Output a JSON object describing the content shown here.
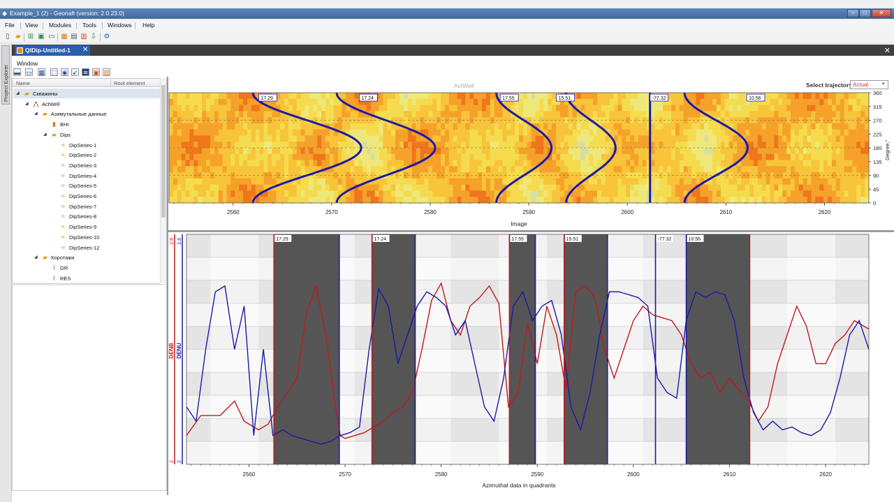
{
  "window": {
    "title": "Example_1 (2) - Geonaft (version: 2.0.23.0)",
    "minimize": "–",
    "maximize": "□",
    "close": "✕"
  },
  "menu": {
    "items": [
      "File",
      "View",
      "Modules",
      "Tools",
      "Windows",
      "Help"
    ]
  },
  "toolbar_icons": [
    "new-file-icon",
    "open-folder-icon",
    "add-well-icon",
    "add-data-icon",
    "table-icon",
    "chart-icon",
    "log-icon",
    "report-icon",
    "export-icon",
    "settings-icon"
  ],
  "side_panel": {
    "label": "Project Explorer"
  },
  "tab": {
    "label": "QIDip-Untitled-1",
    "close": "✕"
  },
  "doc_close": "✕",
  "doc_window_label": "Window",
  "tree": {
    "header_name": "Name",
    "header_root": "Root element",
    "rows": [
      {
        "label": "Скважины",
        "indent": 0,
        "icon": "folder-icon"
      },
      {
        "label": "ActWell",
        "indent": 1,
        "icon": "well-icon"
      },
      {
        "label": "Азимутальные данные",
        "indent": 2,
        "icon": "folder-icon"
      },
      {
        "label": "BHI",
        "indent": 3,
        "icon": "image-icon"
      },
      {
        "label": "Dips",
        "indent": 3,
        "icon": "folder-open-icon"
      },
      {
        "label": "DipSeries-1",
        "indent": 4,
        "icon": "dip-icon"
      },
      {
        "label": "DipSeries-2",
        "indent": 4,
        "icon": "dip-icon"
      },
      {
        "label": "DipSeries-3",
        "indent": 4,
        "icon": "dip-icon"
      },
      {
        "label": "DipSeries-4",
        "indent": 4,
        "icon": "dip-icon"
      },
      {
        "label": "DipSeries-5",
        "indent": 4,
        "icon": "dip-icon"
      },
      {
        "label": "DipSeries-6",
        "indent": 4,
        "icon": "dip-icon"
      },
      {
        "label": "DipSeries-7",
        "indent": 4,
        "icon": "dip-icon"
      },
      {
        "label": "DipSeries-8",
        "indent": 4,
        "icon": "dip-icon"
      },
      {
        "label": "DipSeries-9",
        "indent": 4,
        "icon": "dip-icon"
      },
      {
        "label": "DipSeries-10",
        "indent": 4,
        "icon": "dip-icon"
      },
      {
        "label": "DipSeries-12",
        "indent": 4,
        "icon": "dip-icon"
      },
      {
        "label": "Коротажи",
        "indent": 2,
        "icon": "folder-icon"
      },
      {
        "label": "GR",
        "indent": 3,
        "icon": "curve-icon"
      },
      {
        "label": "RES",
        "indent": 3,
        "icon": "curve-icon"
      }
    ]
  },
  "plot_title": "ActWell",
  "trajectory": {
    "label": "Select trajectory",
    "value": "Actual"
  },
  "chart_data": [
    {
      "type": "heatmap",
      "title": "ActWell",
      "xlabel": "Image",
      "ylabel": "Degree,°",
      "xlim": [
        2553.5,
        2624.5
      ],
      "ylim": [
        0,
        360
      ],
      "xticks": [
        2560,
        2570,
        2580,
        2590,
        2600,
        2610,
        2620
      ],
      "yticks": [
        0,
        45,
        90,
        135,
        180,
        225,
        270,
        315,
        360
      ],
      "sinusoids": [
        {
          "center": 2567.5,
          "amp": 5.5,
          "label": "17.29",
          "line_x": 2562.6
        },
        {
          "center": 2575.5,
          "amp": 5.0,
          "label": "17.24",
          "line_x": 2572.8
        },
        {
          "center": 2589.5,
          "amp": 2.8,
          "label": "17.55",
          "line_x": 2587.1
        },
        {
          "center": 2596.3,
          "amp": 2.5,
          "label": "15.51",
          "line_x": 2592.8
        },
        {
          "center": 2602.3,
          "amp": 0.0,
          "label": "-77.32",
          "line_x": 2602.3
        },
        {
          "center": 2609.0,
          "amp": 3.2,
          "label": "10.56",
          "line_x": 2612.1
        }
      ]
    },
    {
      "type": "line",
      "xlabel": "Azimuthal data in quadrants",
      "xlim": [
        2553.5,
        2624.5
      ],
      "xticks": [
        2560,
        2570,
        2580,
        2590,
        2600,
        2610,
        2620
      ],
      "left_axes": [
        {
          "name": "DENB",
          "min": "2",
          "max": "2.8",
          "color": "#c0181c"
        },
        {
          "name": "DENU",
          "min": "2",
          "max": "2.8",
          "color": "#1a1aa8"
        }
      ],
      "bands": [
        {
          "x0": 2562.6,
          "x1": 2569.4,
          "label": "17.29"
        },
        {
          "x0": 2572.8,
          "x1": 2577.3,
          "label": "17.24"
        },
        {
          "x0": 2587.1,
          "x1": 2589.8,
          "label": "17.55"
        },
        {
          "x0": 2592.8,
          "x1": 2597.3,
          "label": "15.51"
        },
        {
          "x0": 2605.5,
          "x1": 2612.1,
          "label": "10.56"
        }
      ],
      "markers": [
        {
          "x": 2562.6,
          "color": "#c0181c"
        },
        {
          "x": 2569.4,
          "color": "#1a1aa8"
        },
        {
          "x": 2572.8,
          "color": "#c0181c"
        },
        {
          "x": 2577.3,
          "color": "#1a1aa8"
        },
        {
          "x": 2587.1,
          "color": "#c0181c"
        },
        {
          "x": 2589.8,
          "color": "#1a1aa8"
        },
        {
          "x": 2592.8,
          "color": "#c0181c"
        },
        {
          "x": 2597.3,
          "color": "#1a1aa8"
        },
        {
          "x": 2602.3,
          "color": "#1a1aa8",
          "label": "-77.32"
        },
        {
          "x": 2605.5,
          "color": "#1a1aa8"
        },
        {
          "x": 2612.1,
          "color": "#c0181c"
        }
      ],
      "series": [
        {
          "name": "DENB",
          "color": "#c0181c",
          "x": [
            2553.5,
            2555,
            2557,
            2558.5,
            2559.5,
            2561,
            2562,
            2563,
            2564,
            2565,
            2566,
            2567,
            2568,
            2569,
            2569.5,
            2570,
            2571,
            2572,
            2573,
            2574,
            2575,
            2576,
            2577,
            2578,
            2579,
            2580,
            2581,
            2582,
            2583,
            2584,
            2585,
            2586,
            2587,
            2588,
            2589,
            2590,
            2591,
            2592,
            2593,
            2594,
            2595,
            2596,
            2597,
            2598,
            2599,
            2600,
            2601,
            2602,
            2603,
            2604,
            2605,
            2606,
            2607,
            2608,
            2609,
            2610,
            2611,
            2612,
            2613,
            2614,
            2615,
            2616,
            2617,
            2618,
            2619,
            2620,
            2621,
            2622,
            2623,
            2624.5
          ],
          "y": [
            2.1,
            2.17,
            2.17,
            2.22,
            2.15,
            2.12,
            2.14,
            2.2,
            2.25,
            2.3,
            2.53,
            2.62,
            2.45,
            2.2,
            2.1,
            2.09,
            2.1,
            2.11,
            2.13,
            2.15,
            2.18,
            2.2,
            2.25,
            2.4,
            2.57,
            2.63,
            2.5,
            2.45,
            2.55,
            2.58,
            2.62,
            2.56,
            2.2,
            2.25,
            2.49,
            2.35,
            2.55,
            2.45,
            2.26,
            2.6,
            2.62,
            2.58,
            2.4,
            2.3,
            2.4,
            2.5,
            2.55,
            2.52,
            2.51,
            2.5,
            2.45,
            2.35,
            2.3,
            2.32,
            2.25,
            2.3,
            2.26,
            2.22,
            2.15,
            2.2,
            2.35,
            2.45,
            2.55,
            2.48,
            2.35,
            2.35,
            2.42,
            2.45,
            2.5,
            2.47
          ]
        },
        {
          "name": "DENU",
          "color": "#1a1aa8",
          "x": [
            2553.5,
            2554.5,
            2555.5,
            2556.5,
            2557.5,
            2558.5,
            2559.5,
            2560.5,
            2561.5,
            2562.5,
            2563.5,
            2564.5,
            2565.5,
            2566.5,
            2567.5,
            2568.5,
            2569.5,
            2570.5,
            2571.5,
            2572.5,
            2573.5,
            2574.5,
            2575.5,
            2576.5,
            2577.5,
            2578.5,
            2579.5,
            2580.5,
            2581.5,
            2582.5,
            2583.5,
            2584.5,
            2585.5,
            2586.5,
            2587.5,
            2588.5,
            2589.5,
            2590.5,
            2591.5,
            2592.5,
            2593.5,
            2594.5,
            2595.5,
            2596.5,
            2597.5,
            2598.5,
            2599.5,
            2600.5,
            2601.5,
            2602.5,
            2603.5,
            2604.5,
            2605.5,
            2606.5,
            2607.5,
            2608.5,
            2609.5,
            2610.5,
            2611.5,
            2612.5,
            2613.5,
            2614.5,
            2615.5,
            2616.5,
            2617.5,
            2618.5,
            2619.5,
            2620.5,
            2621.5,
            2622.5,
            2623.5,
            2624.5
          ],
          "y": [
            2.2,
            2.15,
            2.4,
            2.6,
            2.62,
            2.4,
            2.55,
            2.1,
            2.4,
            2.1,
            2.12,
            2.1,
            2.09,
            2.08,
            2.07,
            2.08,
            2.1,
            2.11,
            2.13,
            2.4,
            2.61,
            2.55,
            2.35,
            2.45,
            2.55,
            2.6,
            2.58,
            2.55,
            2.45,
            2.5,
            2.35,
            2.2,
            2.15,
            2.3,
            2.55,
            2.6,
            2.5,
            2.55,
            2.57,
            2.45,
            2.2,
            2.12,
            2.25,
            2.45,
            2.6,
            2.6,
            2.59,
            2.58,
            2.55,
            2.3,
            2.25,
            2.23,
            2.5,
            2.6,
            2.58,
            2.6,
            2.59,
            2.5,
            2.3,
            2.18,
            2.12,
            2.15,
            2.12,
            2.13,
            2.11,
            2.1,
            2.12,
            2.18,
            2.3,
            2.45,
            2.5,
            2.4
          ]
        }
      ]
    }
  ]
}
